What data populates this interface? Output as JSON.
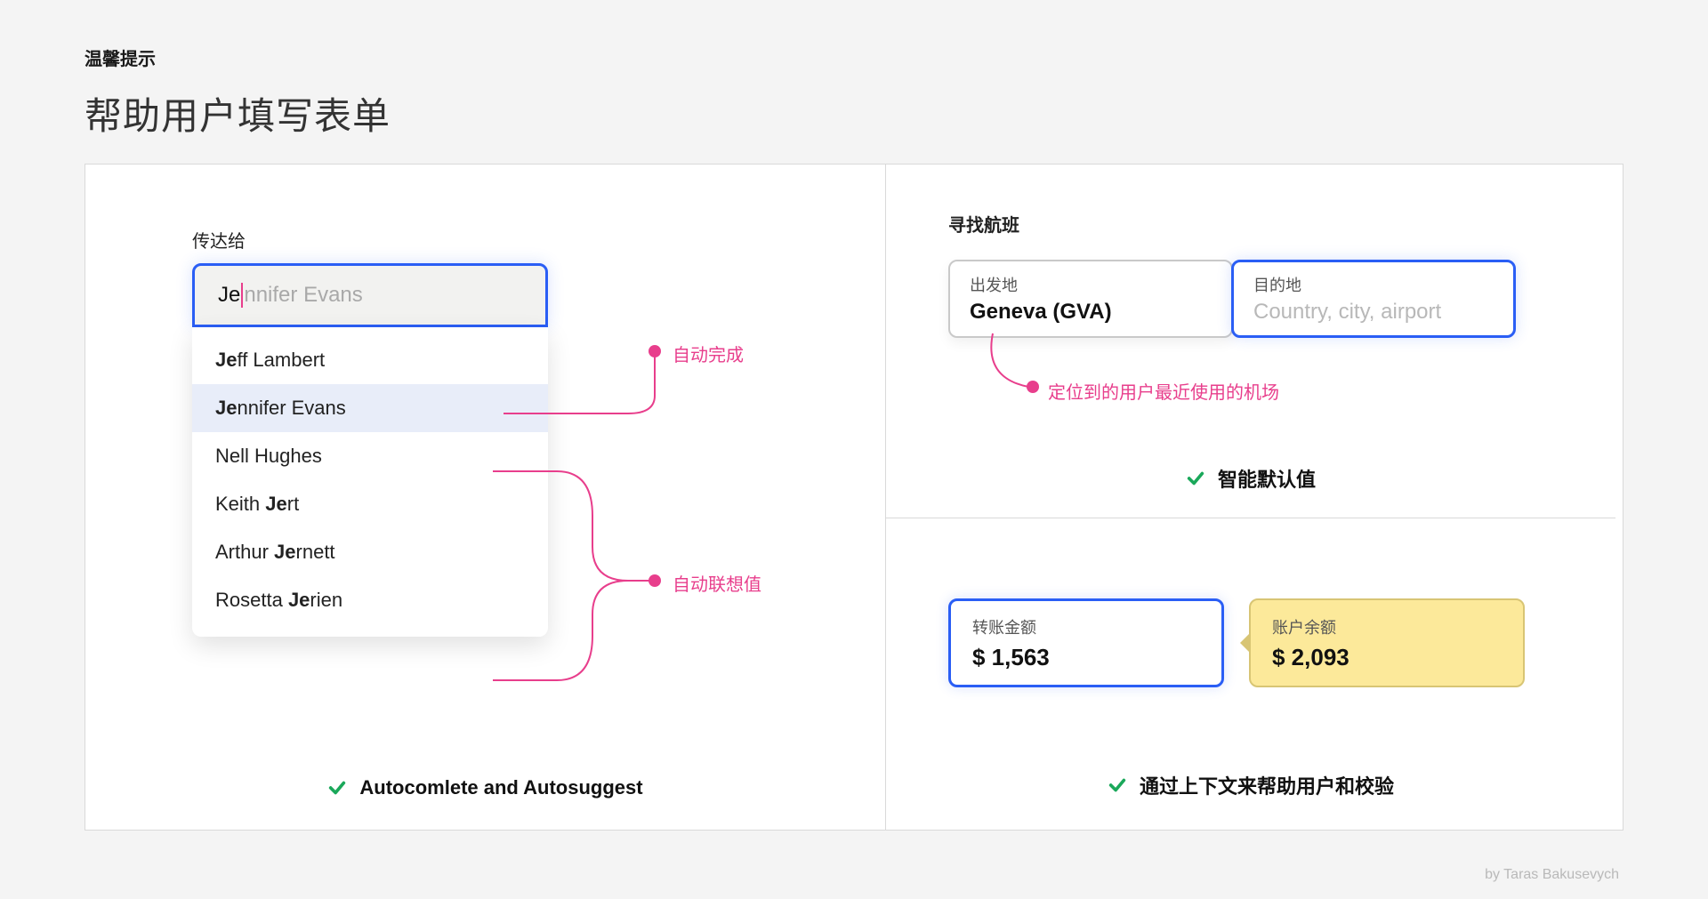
{
  "header": {
    "kicker": "温馨提示",
    "title": "帮助用户填写表单"
  },
  "colors": {
    "focus_border": "#2a5ef5",
    "annotation": "#e83e8c",
    "success": "#1aa85a",
    "balance_bg": "#fce99a",
    "balance_border": "#d8c574",
    "page_bg": "#f4f4f4",
    "panel_border": "#d9d9d9"
  },
  "left": {
    "field_label": "传达给",
    "typed": "Je",
    "ghost": "nnifer Evans",
    "suggestions": [
      {
        "prefix": "Je",
        "rest": "ff Lambert",
        "selected": false
      },
      {
        "prefix": "Je",
        "rest": "nnifer Evans",
        "selected": true
      },
      {
        "prefix": "",
        "rest": "Nell Hughes",
        "selected": false
      },
      {
        "prefix": "",
        "rest": "Keith ",
        "bold_tail": "Je",
        "tail": "rt",
        "selected": false
      },
      {
        "prefix": "",
        "rest": "Arthur ",
        "bold_tail": "Je",
        "tail": "rnett",
        "selected": false
      },
      {
        "prefix": "",
        "rest": "Rosetta ",
        "bold_tail": "Je",
        "tail": "rien",
        "selected": false
      }
    ],
    "annot_autocomplete": "自动完成",
    "annot_autosuggest": "自动联想值",
    "caption": "Autocomlete and Autosuggest"
  },
  "top_right": {
    "section_label": "寻找航班",
    "from_label": "出发地",
    "from_value": "Geneva (GVA)",
    "to_label": "目的地",
    "to_placeholder": "Country, city, airport",
    "annot": "定位到的用户最近使用的机场",
    "caption": "智能默认值"
  },
  "bottom_right": {
    "amount_label": "转账金额",
    "amount_value": "$  1,563",
    "balance_label": "账户余额",
    "balance_value": "$  2,093",
    "caption": "通过上下文来帮助用户和校验"
  },
  "credit": "by Taras Bakusevych"
}
